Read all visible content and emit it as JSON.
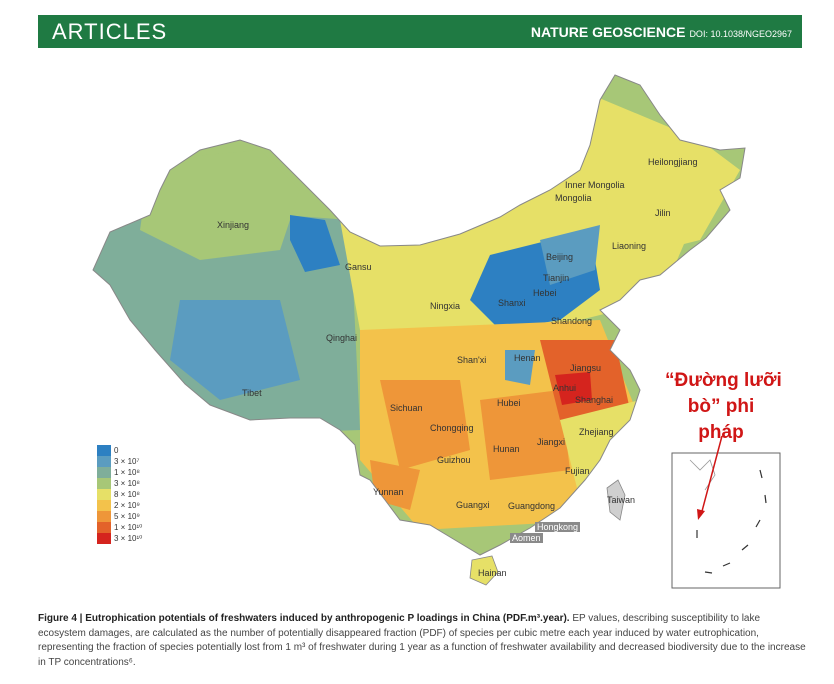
{
  "header": {
    "section": "ARTICLES",
    "journal": "NATURE GEOSCIENCE",
    "doi": "DOI: 10.1038/NGEO2967"
  },
  "map": {
    "provinces": {
      "heilongjiang": "Heilongjiang",
      "inner_mongolia": "Inner Mongolia",
      "jilin": "Jilin",
      "liaoning": "Liaoning",
      "xinjiang": "Xinjiang",
      "gansu": "Gansu",
      "beijing": "Beijing",
      "tianjin": "Tianjin",
      "hebei": "Hebei",
      "ningxia": "Ningxia",
      "shanxi": "Shanxi",
      "shandong": "Shandong",
      "qinghai": "Qinghai",
      "shaanxi": "Shan'xi",
      "henan": "Henan",
      "jiangsu": "Jiangsu",
      "anhui": "Anhui",
      "shanghai": "Shanghai",
      "tibet": "Tibet",
      "sichuan": "Sichuan",
      "hubei": "Hubei",
      "zhejiang": "Zhejiang",
      "chongqing": "Chongqing",
      "hunan": "Hunan",
      "jiangxi": "Jiangxi",
      "guizhou": "Guizhou",
      "fujian": "Fujian",
      "yunnan": "Yunnan",
      "taiwan": "Taiwan",
      "guangxi": "Guangxi",
      "guangdong": "Guangdong",
      "hongkong": "Hongkong",
      "aomen": "Aomen",
      "hainan": "Hainan"
    },
    "legend": [
      {
        "label": "0",
        "color": "#2d80c2"
      },
      {
        "label": "3 × 10⁷",
        "color": "#5b9cc0"
      },
      {
        "label": "1 × 10⁸",
        "color": "#7fae9a"
      },
      {
        "label": "3 × 10⁸",
        "color": "#a7c777"
      },
      {
        "label": "8 × 10⁸",
        "color": "#e6e067"
      },
      {
        "label": "2 × 10⁹",
        "color": "#f3c24b"
      },
      {
        "label": "5 × 10⁹",
        "color": "#ee9639"
      },
      {
        "label": "1 × 10¹⁰",
        "color": "#e3622a"
      },
      {
        "label": "3 × 10¹⁰",
        "color": "#d5241e"
      }
    ]
  },
  "annotation": {
    "line1": "“Đường lưỡi",
    "line2": "bò” phi pháp"
  },
  "caption": {
    "title": "Figure 4 | Eutrophication potentials of freshwaters induced by anthropogenic P loadings in China (PDF.m³.year).",
    "body": "EP values, describing susceptibility to lake ecosystem damages, are calculated as the number of potentially disappeared fraction (PDF) of species per cubic metre each year induced by water eutrophication, representing the fraction of species potentially lost from 1 m³ of freshwater during 1 year as a function of freshwater availability and decreased biodiversity due to the increase in TP concentrations⁶."
  }
}
